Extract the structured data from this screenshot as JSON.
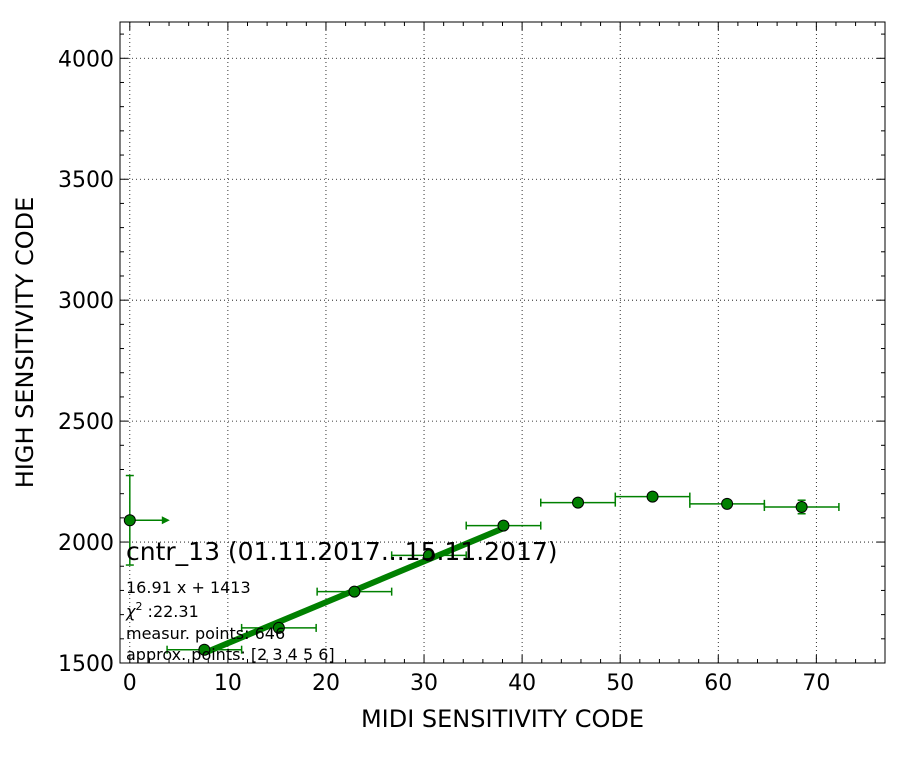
{
  "chart_data": {
    "type": "scatter",
    "xlabel": "MIDI SENSITIVITY CODE",
    "ylabel": "HIGH SENSITIVITY CODE",
    "xlim": [
      -1,
      77
    ],
    "ylim": [
      1500,
      4150
    ],
    "xticks": [
      0,
      10,
      20,
      30,
      40,
      50,
      60,
      70
    ],
    "yticks": [
      1500,
      2000,
      2500,
      3000,
      3500,
      4000
    ],
    "grid": true,
    "colors": {
      "series": "#008000",
      "marker_edge": "#000000"
    },
    "points": [
      {
        "x": 0.0,
        "y": 2090,
        "yerr": 185,
        "xerr_upper_arrow": true
      },
      {
        "x": 7.6,
        "y": 1555,
        "xerr": 3.8
      },
      {
        "x": 15.2,
        "y": 1645,
        "xerr": 3.8
      },
      {
        "x": 22.9,
        "y": 1795,
        "xerr": 3.8
      },
      {
        "x": 30.5,
        "y": 1945,
        "xerr": 3.8
      },
      {
        "x": 38.1,
        "y": 2068,
        "xerr": 3.8
      },
      {
        "x": 45.7,
        "y": 2163,
        "xerr": 3.8
      },
      {
        "x": 53.3,
        "y": 2188,
        "xerr": 3.8,
        "yerr": 12
      },
      {
        "x": 60.9,
        "y": 2158,
        "xerr": 3.8,
        "yerr": 15
      },
      {
        "x": 68.5,
        "y": 2145,
        "xerr": 3.8,
        "yerr": 28
      }
    ],
    "fit": {
      "slope": 16.91,
      "intercept": 1413,
      "x_range": [
        7.6,
        38.1
      ]
    },
    "annotations": {
      "title": "cntr_13 (01.11.2017...15.11.2017)",
      "equation": "16.91 x + 1413",
      "chi_symbol": "χ",
      "chi_sup": "2",
      "chi_value": " :22.31",
      "measur_points": "measur. points: 646",
      "approx_points": "approx. points: [2 3 4 5 6]"
    }
  }
}
